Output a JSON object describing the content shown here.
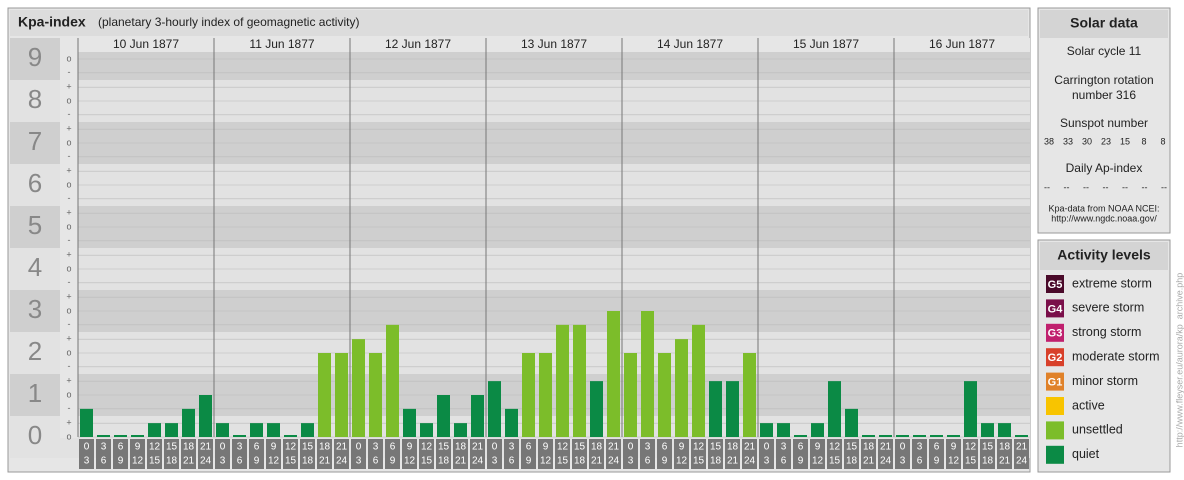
{
  "chart_data": {
    "type": "bar",
    "title": "Kpa-index",
    "subtitle": "(planetary 3-hourly index of geomagnetic activity)",
    "days": [
      "10 Jun 1877",
      "11 Jun 1877",
      "12 Jun 1877",
      "13 Jun 1877",
      "14 Jun 1877",
      "15 Jun 1877",
      "16 Jun 1877"
    ],
    "time_labels": [
      [
        "0",
        "3"
      ],
      [
        "3",
        "6"
      ],
      [
        "6",
        "9"
      ],
      [
        "9",
        "12"
      ],
      [
        "12",
        "15"
      ],
      [
        "15",
        "18"
      ],
      [
        "18",
        "21"
      ],
      [
        "21",
        "24"
      ]
    ],
    "values": [
      0.67,
      0,
      0,
      0,
      0.33,
      0.33,
      0.67,
      1,
      0.33,
      0,
      0.33,
      0.33,
      0,
      0.33,
      2,
      2,
      2.33,
      2,
      2.67,
      0.67,
      0.33,
      1,
      0.33,
      1,
      1.33,
      0.67,
      2,
      2,
      2.67,
      2.67,
      1.33,
      3,
      2,
      3,
      2,
      2.33,
      2.67,
      1.33,
      1.33,
      2,
      0.33,
      0.33,
      0,
      0.33,
      1.33,
      0.67,
      0,
      0,
      0,
      0,
      0,
      0,
      1.33,
      0.33,
      0.33,
      0
    ],
    "colors": [
      "#0b8a45",
      "#0b8a45",
      "#0b8a45",
      "#0b8a45",
      "#0b8a45",
      "#0b8a45",
      "#0b8a45",
      "#0b8a45",
      "#0b8a45",
      "#0b8a45",
      "#0b8a45",
      "#0b8a45",
      "#0b8a45",
      "#0b8a45",
      "#7cbd2a",
      "#7cbd2a",
      "#7cbd2a",
      "#7cbd2a",
      "#7cbd2a",
      "#0b8a45",
      "#0b8a45",
      "#0b8a45",
      "#0b8a45",
      "#0b8a45",
      "#0b8a45",
      "#0b8a45",
      "#7cbd2a",
      "#7cbd2a",
      "#7cbd2a",
      "#7cbd2a",
      "#0b8a45",
      "#7cbd2a",
      "#7cbd2a",
      "#7cbd2a",
      "#7cbd2a",
      "#7cbd2a",
      "#7cbd2a",
      "#0b8a45",
      "#0b8a45",
      "#7cbd2a",
      "#0b8a45",
      "#0b8a45",
      "#0b8a45",
      "#0b8a45",
      "#0b8a45",
      "#0b8a45",
      "#0b8a45",
      "#0b8a45",
      "#0b8a45",
      "#0b8a45",
      "#0b8a45",
      "#0b8a45",
      "#0b8a45",
      "#0b8a45",
      "#0b8a45",
      "#0b8a45"
    ],
    "ylim": [
      0,
      9.5
    ],
    "yticks": [
      0,
      1,
      2,
      3,
      4,
      5,
      6,
      7,
      8,
      9
    ],
    "yminor": [
      {
        "value": 0,
        "label": "o"
      },
      {
        "value": 0.33,
        "label": "+"
      },
      {
        "value": 0.67,
        "label": "-"
      },
      {
        "value": 1,
        "label": "o"
      },
      {
        "value": 1.33,
        "label": "+"
      },
      {
        "value": 1.67,
        "label": "-"
      },
      {
        "value": 2,
        "label": "o"
      },
      {
        "value": 2.33,
        "label": "+"
      },
      {
        "value": 2.67,
        "label": "-"
      },
      {
        "value": 3,
        "label": "o"
      },
      {
        "value": 3.33,
        "label": "+"
      },
      {
        "value": 3.67,
        "label": "-"
      },
      {
        "value": 4,
        "label": "o"
      },
      {
        "value": 4.33,
        "label": "+"
      },
      {
        "value": 4.67,
        "label": "-"
      },
      {
        "value": 5,
        "label": "o"
      },
      {
        "value": 5.33,
        "label": "+"
      },
      {
        "value": 5.67,
        "label": "-"
      },
      {
        "value": 6,
        "label": "o"
      },
      {
        "value": 6.33,
        "label": "+"
      },
      {
        "value": 6.67,
        "label": "-"
      },
      {
        "value": 7,
        "label": "o"
      },
      {
        "value": 7.33,
        "label": "+"
      },
      {
        "value": 7.67,
        "label": "-"
      },
      {
        "value": 8,
        "label": "o"
      },
      {
        "value": 8.33,
        "label": "+"
      },
      {
        "value": 8.67,
        "label": "-"
      },
      {
        "value": 9,
        "label": "o"
      }
    ],
    "grid": true
  },
  "solar_data": {
    "title": "Solar data",
    "cycle": "Solar cycle 11",
    "rotation": [
      "Carrington rotation",
      "number 316"
    ],
    "sunspot_title": "Sunspot number",
    "sunspots": [
      38,
      33,
      30,
      23,
      15,
      8,
      8
    ],
    "ap_title": "Daily Ap-index",
    "ap": [
      "--",
      "--",
      "--",
      "--",
      "--",
      "--",
      "--"
    ],
    "source": [
      "Kpa-data from NOAA NCEI:",
      "http://www.ngdc.noaa.gov/"
    ]
  },
  "activity_levels": {
    "title": "Activity levels",
    "items": [
      {
        "badge": "G5",
        "name": "extreme storm",
        "color": "#4a0a2a"
      },
      {
        "badge": "G4",
        "name": "severe storm",
        "color": "#7a0f4a"
      },
      {
        "badge": "G3",
        "name": "strong storm",
        "color": "#c0206e"
      },
      {
        "badge": "G2",
        "name": "moderate storm",
        "color": "#d8402a"
      },
      {
        "badge": "G1",
        "name": "minor storm",
        "color": "#e0822a"
      },
      {
        "name": "active",
        "color": "#f8c400"
      },
      {
        "name": "unsettled",
        "color": "#7cbd2a"
      },
      {
        "name": "quiet",
        "color": "#0b8a45"
      }
    ]
  },
  "credit": "http://www.fleyser.eu/aurora/kp_archive.php"
}
